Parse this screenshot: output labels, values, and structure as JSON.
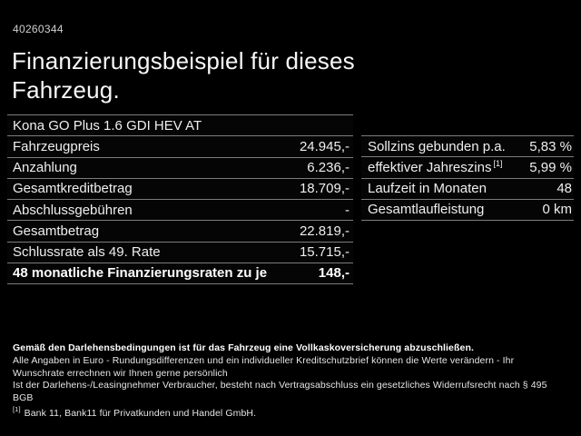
{
  "page": {
    "background": "#000000",
    "text_color": "#f2f2f2",
    "divider_color": "#7c7c7c"
  },
  "header": {
    "document_number": "40260344",
    "title_line1": "Finanzierungsbeispiel für dieses",
    "title_line2": "Fahrzeug.",
    "vehicle_name": "Kona GO Plus 1.6 GDI HEV AT"
  },
  "finance_table": {
    "rows": [
      {
        "label": "Fahrzeugpreis",
        "value": "24.945,-"
      },
      {
        "label": "Anzahlung",
        "value": "6.236,-"
      },
      {
        "label": "Gesamtkreditbetrag",
        "value": "18.709,-"
      },
      {
        "label": "Abschlussgebühren",
        "value": "-"
      },
      {
        "label": "Gesamtbetrag",
        "value": "22.819,-"
      },
      {
        "label": "Schlussrate als 49. Rate",
        "value": "15.715,-"
      },
      {
        "label": "48 monatliche Finanzierungsraten zu je",
        "value": "148,-"
      }
    ]
  },
  "conditions_table": {
    "rows": [
      {
        "label": "Sollzins gebunden p.a.",
        "sup": "",
        "value": "5,83 %"
      },
      {
        "label": "effektiver Jahreszins",
        "sup": "[1]",
        "value": "5,99 %"
      },
      {
        "label": "Laufzeit in Monaten",
        "sup": "",
        "value": "48"
      },
      {
        "label": "Gesamtlaufleistung",
        "sup": "",
        "value": "0 km"
      }
    ]
  },
  "footer": {
    "insurance_note": "Gemäß den Darlehensbedingungen ist für das Fahrzeug eine Vollkaskoversicherung abzuschließen.",
    "disclaimer_line1": "Alle Angaben in Euro - Rundungsdifferenzen und ein individueller Kreditschutzbrief können die Werte verändern - Ihr Wunschrate errechnen wir Ihnen gerne persönlich",
    "disclaimer_line2": "Ist der Darlehens-/Leasingnehmer Verbraucher, besteht nach Vertragsabschluss ein gesetzliches Widerrufsrecht nach § 495 BGB",
    "footnote_marker": "[1]",
    "footnote_text": "Bank 11, Bank11 für Privatkunden und Handel GmbH."
  }
}
